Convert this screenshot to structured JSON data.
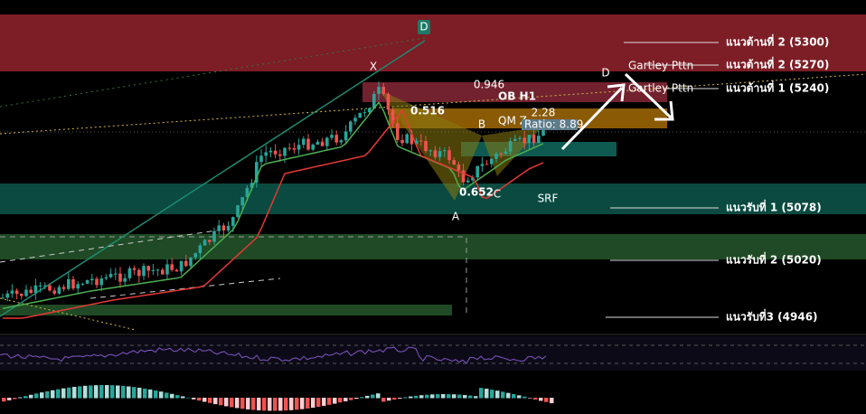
{
  "header": {
    "title": "OB H1"
  },
  "pattern": {
    "points": {
      "x": "X",
      "a": "A",
      "b": "B",
      "c": "C",
      "d": "D",
      "d_top": "D"
    },
    "ratios": {
      "xb": "0.516",
      "ac": "0.652",
      "bc": "0.946",
      "cd": "2.28"
    },
    "labels": {
      "qm": "QM Z",
      "ratio": "Ratio: 8.89",
      "srf": "SRF"
    },
    "names": [
      "Gartley Pttn",
      "Gartley Pttn"
    ]
  },
  "levels": [
    "แนวต้านที่  2 (5300)",
    "แนวต้านที่ 2 (5270)",
    "แนวต้านที่ 1 (5240)",
    "แนวรับที่ 1 (5078)",
    "แนวรับที่ 2 (5020)",
    "แนวรับที่3 (4946)"
  ]
}
